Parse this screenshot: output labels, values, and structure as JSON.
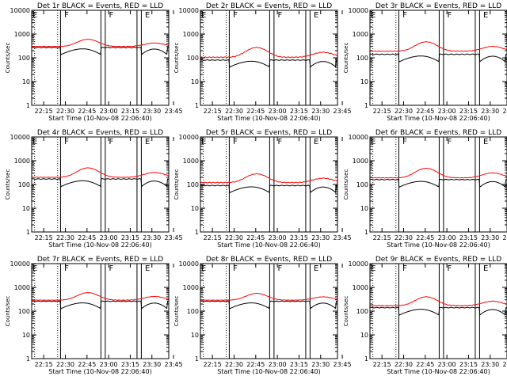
{
  "chart_data": {
    "type": "line",
    "layout": {
      "rows": 3,
      "cols": 3
    },
    "x_tick_labels": [
      "22:15",
      "22:30",
      "22:45",
      "23:00",
      "23:15",
      "23:30",
      "23:45"
    ],
    "x_range_minutes": [
      0,
      95
    ],
    "xlabel": "Start Time (10-Nov-08 22:06:40)",
    "ylabel": "Counts/sec",
    "y_scale": "log",
    "y_range": [
      1,
      10000
    ],
    "y_tick_labels": [
      "1",
      "10",
      "100",
      "1000",
      "10000"
    ],
    "annotations": {
      "dotted_lines_min": [
        2,
        18
      ],
      "solid_lines_min": [
        20,
        48,
        51,
        73,
        76
      ],
      "markers": [
        {
          "label": "E",
          "at_min": 0
        },
        {
          "label": "F",
          "at_min": 22
        },
        {
          "label": "F",
          "at_min": 53
        },
        {
          "label": "E",
          "at_min": 78
        }
      ]
    },
    "series_colors": {
      "events": "#000000",
      "lld": "#ff0000"
    },
    "panels": [
      {
        "title": "Det 1r BLACK = Events, RED = LLD",
        "events_base": 270,
        "events_dip": 150,
        "lld_base": 300,
        "lld_peak": 600
      },
      {
        "title": "Det 2r BLACK = Events, RED = LLD",
        "events_base": 80,
        "events_dip": 45,
        "lld_base": 105,
        "lld_peak": 270
      },
      {
        "title": "Det 3r BLACK = Events, RED = LLD",
        "events_base": 140,
        "events_dip": 75,
        "lld_base": 190,
        "lld_peak": 470
      },
      {
        "title": "Det 4r BLACK = Events, RED = LLD",
        "events_base": 170,
        "events_dip": 90,
        "lld_base": 200,
        "lld_peak": 500
      },
      {
        "title": "Det 5r BLACK = Events, RED = LLD",
        "events_base": 90,
        "events_dip": 50,
        "lld_base": 120,
        "lld_peak": 280
      },
      {
        "title": "Det 6r BLACK = Events, RED = LLD",
        "events_base": 160,
        "events_dip": 85,
        "lld_base": 190,
        "lld_peak": 480
      },
      {
        "title": "Det 7r BLACK = Events, RED = LLD",
        "events_base": 260,
        "events_dip": 140,
        "lld_base": 290,
        "lld_peak": 600
      },
      {
        "title": "Det 8r BLACK = Events, RED = LLD",
        "events_base": 260,
        "events_dip": 140,
        "lld_base": 290,
        "lld_peak": 560
      },
      {
        "title": "Det 9r BLACK = Events, RED = LLD",
        "events_base": 140,
        "events_dip": 75,
        "lld_base": 170,
        "lld_peak": 400
      }
    ]
  }
}
